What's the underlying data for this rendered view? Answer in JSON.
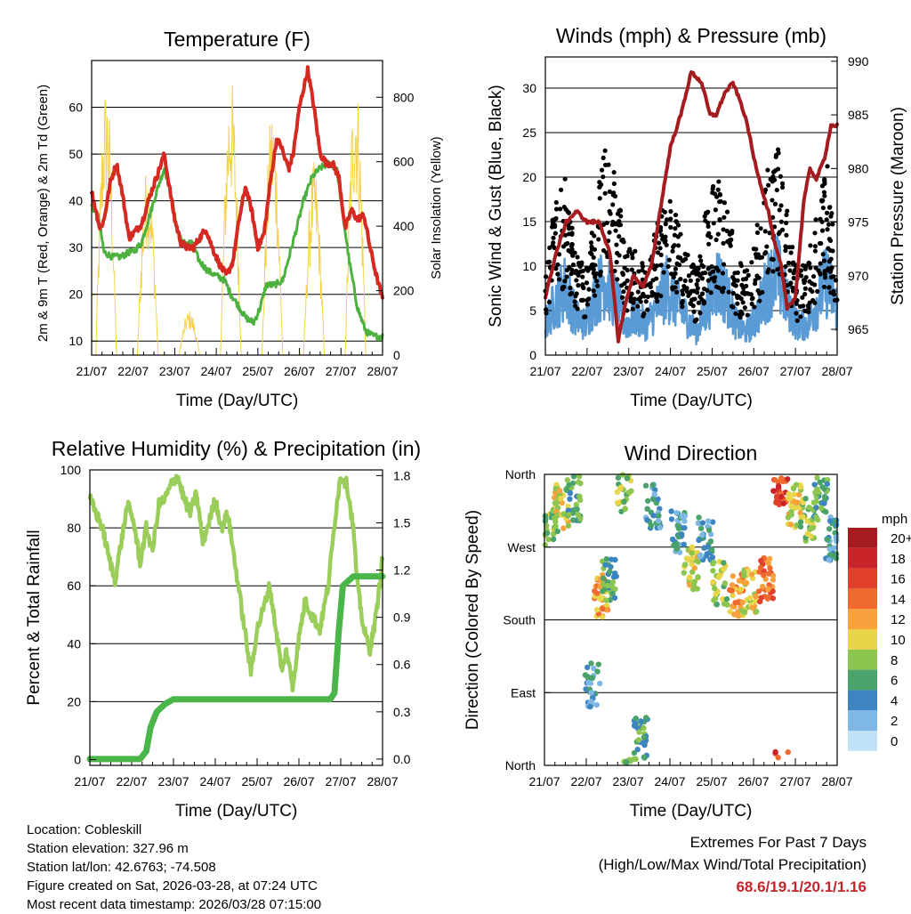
{
  "chart_data": [
    {
      "type": "line",
      "title": "Temperature (F)",
      "xlabel": "Time (Day/UTC)",
      "ylabel": "2m & 9m T (Red, Orange) & 2m Td (Green)",
      "y2label": "Solar Insolation (Yellow)",
      "categories": [
        "21/07",
        "22/07",
        "23/07",
        "24/07",
        "25/07",
        "26/07",
        "27/07",
        "28/07"
      ],
      "ylim": [
        7,
        70
      ],
      "y2lim": [
        0,
        914
      ],
      "yticks": [
        10,
        20,
        30,
        40,
        50,
        60
      ],
      "y2ticks": [
        0,
        200,
        400,
        600,
        800
      ],
      "series": [
        {
          "name": "2m T",
          "color": "#d42a22",
          "x": [
            0,
            0.1,
            0.2,
            0.3,
            0.45,
            0.6,
            0.75,
            0.9,
            1.0,
            1.2,
            1.4,
            1.6,
            1.75,
            1.85,
            2.0,
            2.15,
            2.3,
            2.45,
            2.6,
            2.75,
            2.9,
            3.1,
            3.25,
            3.4,
            3.55,
            3.7,
            3.85,
            4.0,
            4.15,
            4.3,
            4.45,
            4.55,
            4.65,
            4.75,
            4.85,
            5.0,
            5.2,
            5.35,
            5.5,
            5.65,
            5.8,
            5.95,
            6.1,
            6.25,
            6.4,
            6.55,
            6.7,
            6.85,
            7.0
          ],
          "values": [
            42,
            38,
            34,
            36,
            44,
            48,
            41,
            32,
            33,
            35,
            41,
            46,
            50,
            44,
            36,
            31,
            30,
            30,
            32,
            34,
            30,
            26,
            24,
            27,
            36,
            43,
            38,
            30,
            33,
            44,
            53,
            52,
            49,
            47,
            50,
            60,
            68,
            60,
            50,
            48,
            48,
            45,
            34,
            38,
            36,
            37,
            30,
            24,
            19
          ]
        },
        {
          "name": "2m Td",
          "color": "#4db13f",
          "x": [
            0,
            0.15,
            0.3,
            0.5,
            0.7,
            0.9,
            1.0,
            1.2,
            1.4,
            1.6,
            1.75,
            1.9,
            2.05,
            2.2,
            2.4,
            2.6,
            2.8,
            3.0,
            3.2,
            3.35,
            3.5,
            3.7,
            3.9,
            4.05,
            4.2,
            4.4,
            4.6,
            4.75,
            4.9,
            5.1,
            5.3,
            5.5,
            5.7,
            5.9,
            6.0,
            6.2,
            6.4,
            6.6,
            6.8,
            7.0
          ],
          "values": [
            39,
            37,
            29,
            28,
            28,
            29,
            29,
            31,
            37,
            43,
            47,
            42,
            34,
            31,
            31,
            27,
            25,
            24,
            23,
            20,
            18,
            15,
            14,
            17,
            22,
            22,
            23,
            28,
            33,
            40,
            45,
            47,
            48,
            47,
            40,
            27,
            17,
            12,
            11,
            11
          ]
        }
      ],
      "solar": {
        "name": "Solar Insolation",
        "color": "#f3d24a",
        "days": [
          0,
          1,
          2,
          3,
          4,
          5,
          6
        ],
        "peaks": [
          850,
          600,
          140,
          870,
          780,
          600,
          880
        ]
      }
    },
    {
      "type": "scatter",
      "title": "Winds (mph) & Pressure (mb)",
      "xlabel": "Time (Day/UTC)",
      "ylabel": "Sonic Wind & Gust (Blue, Black)",
      "y2label": "Station Pressure (Maroon)",
      "categories": [
        "21/07",
        "22/07",
        "23/07",
        "24/07",
        "25/07",
        "26/07",
        "27/07",
        "28/07"
      ],
      "ylim": [
        0,
        33.5
      ],
      "y2lim": [
        962.6,
        990.4
      ],
      "yticks": [
        0,
        5,
        10,
        15,
        20,
        25,
        30
      ],
      "y2ticks": [
        965,
        970,
        975,
        980,
        985,
        990
      ],
      "wind_level": [
        4,
        7,
        9,
        5,
        4,
        8,
        10,
        7,
        4,
        5,
        4,
        6,
        9,
        7,
        5,
        3,
        6,
        10,
        8,
        4,
        3,
        5,
        9,
        11,
        7,
        4,
        4,
        7,
        10,
        6
      ],
      "gust_level": [
        9,
        15,
        17,
        10,
        8,
        14,
        20,
        17,
        10,
        10,
        9,
        12,
        16,
        13,
        10,
        8,
        14,
        17,
        15,
        9,
        8,
        12,
        17,
        21,
        14,
        8,
        9,
        14,
        18,
        11
      ],
      "pressure": {
        "name": "Station Pressure",
        "color": "#a51c20",
        "x": [
          0,
          0.25,
          0.5,
          0.75,
          1.0,
          1.3,
          1.55,
          1.75,
          1.9,
          2.1,
          2.35,
          2.55,
          2.75,
          3.0,
          3.25,
          3.5,
          3.75,
          3.95,
          4.1,
          4.3,
          4.5,
          4.7,
          4.85,
          5.0,
          5.2,
          5.35,
          5.5,
          5.65,
          5.8,
          6.0,
          6.2,
          6.35,
          6.5,
          6.7,
          6.85,
          7.0
        ],
        "values": [
          968,
          972,
          975,
          976,
          975,
          975,
          972,
          964,
          967,
          970,
          969,
          971,
          976,
          982,
          985,
          989,
          988,
          985,
          985,
          987,
          988,
          986,
          984,
          981,
          978,
          976,
          973,
          971,
          967,
          968,
          977,
          980,
          979,
          981,
          984,
          984
        ]
      }
    },
    {
      "type": "line",
      "title": "Relative Humidity (%) & Precipitation (in)",
      "xlabel": "Time (Day/UTC)",
      "ylabel": "Percent & Total Rainfall",
      "categories": [
        "21/07",
        "22/07",
        "23/07",
        "24/07",
        "25/07",
        "26/07",
        "27/07",
        "28/07"
      ],
      "ylim": [
        -2,
        100
      ],
      "y2lim": [
        -0.04,
        1.836
      ],
      "yticks": [
        0,
        20,
        40,
        60,
        80,
        100
      ],
      "y2ticks": [
        0.0,
        0.3,
        0.6,
        0.9,
        1.2,
        1.5,
        1.8
      ],
      "series": [
        {
          "name": "Relative Humidity",
          "color": "#9acd5a",
          "x": [
            0,
            0.15,
            0.3,
            0.45,
            0.6,
            0.75,
            0.9,
            1.05,
            1.2,
            1.35,
            1.5,
            1.65,
            1.8,
            1.95,
            2.1,
            2.25,
            2.4,
            2.55,
            2.7,
            2.85,
            3.0,
            3.15,
            3.3,
            3.45,
            3.6,
            3.75,
            3.85,
            4.0,
            4.15,
            4.3,
            4.45,
            4.6,
            4.7,
            4.85,
            5.0,
            5.15,
            5.3,
            5.5,
            5.7,
            5.9,
            6.0,
            6.15,
            6.3,
            6.4,
            6.55,
            6.7,
            6.85,
            7.0
          ],
          "values": [
            90,
            85,
            80,
            70,
            62,
            75,
            88,
            82,
            68,
            80,
            72,
            88,
            90,
            95,
            98,
            90,
            85,
            92,
            75,
            82,
            90,
            80,
            85,
            70,
            55,
            40,
            30,
            45,
            52,
            60,
            45,
            30,
            38,
            25,
            42,
            55,
            50,
            45,
            60,
            88,
            98,
            95,
            80,
            60,
            45,
            38,
            50,
            70
          ]
        },
        {
          "name": "Total Precipitation",
          "color": "#4ab64a",
          "x": [
            0,
            1.2,
            1.35,
            1.45,
            1.6,
            1.8,
            2.0,
            2.3,
            3.0,
            4.0,
            5.0,
            5.5,
            5.75,
            5.85,
            5.95,
            6.05,
            6.3,
            6.6,
            7.0
          ],
          "values": [
            0,
            0,
            0.05,
            0.2,
            0.3,
            0.35,
            0.38,
            0.38,
            0.38,
            0.38,
            0.38,
            0.38,
            0.38,
            0.42,
            0.8,
            1.1,
            1.16,
            1.16,
            1.16
          ]
        }
      ]
    },
    {
      "type": "scatter",
      "title": "Wind Direction",
      "xlabel": "Time (Day/UTC)",
      "ylabel": "Direction (Colored By Speed)",
      "categories": [
        "21/07",
        "22/07",
        "23/07",
        "24/07",
        "25/07",
        "26/07",
        "27/07",
        "28/07"
      ],
      "ylim": [
        0,
        360
      ],
      "yticks": [
        "North",
        "East",
        "South",
        "West",
        "North"
      ],
      "clusters": [
        {
          "t": 0.15,
          "dir": 300,
          "spd": 8
        },
        {
          "t": 0.4,
          "dir": 320,
          "spd": 10
        },
        {
          "t": 0.7,
          "dir": 330,
          "spd": 6
        },
        {
          "t": 1.15,
          "dir": 100,
          "spd": 4
        },
        {
          "t": 1.35,
          "dir": 210,
          "spd": 12
        },
        {
          "t": 1.55,
          "dir": 230,
          "spd": 6
        },
        {
          "t": 1.9,
          "dir": 340,
          "spd": 8
        },
        {
          "t": 2.3,
          "dir": 35,
          "spd": 6
        },
        {
          "t": 2.6,
          "dir": 320,
          "spd": 4
        },
        {
          "t": 3.2,
          "dir": 290,
          "spd": 4
        },
        {
          "t": 3.5,
          "dir": 245,
          "spd": 10
        },
        {
          "t": 3.85,
          "dir": 280,
          "spd": 4
        },
        {
          "t": 4.2,
          "dir": 225,
          "spd": 8
        },
        {
          "t": 4.6,
          "dir": 210,
          "spd": 12
        },
        {
          "t": 4.9,
          "dir": 215,
          "spd": 10
        },
        {
          "t": 5.3,
          "dir": 230,
          "spd": 14
        },
        {
          "t": 5.65,
          "dir": 350,
          "spd": 16
        },
        {
          "t": 6.0,
          "dir": 320,
          "spd": 10
        },
        {
          "t": 6.3,
          "dir": 305,
          "spd": 8
        },
        {
          "t": 6.6,
          "dir": 330,
          "spd": 6
        },
        {
          "t": 6.9,
          "dir": 280,
          "spd": 4
        }
      ],
      "colorbar": {
        "unit": "mph",
        "labels": [
          "20+",
          "18",
          "16",
          "14",
          "12",
          "10",
          "8",
          "6",
          "4",
          "2",
          "0"
        ],
        "colors": [
          "#a51c20",
          "#c8242a",
          "#e0402c",
          "#f06a30",
          "#f7a23d",
          "#e9d54a",
          "#8cc54f",
          "#4aa36a",
          "#3c85c1",
          "#7fb8e4",
          "#bfe2f6"
        ]
      }
    }
  ],
  "footer": {
    "location": "Location: Cobleskill",
    "elevation": "Station elevation: 327.96 m",
    "latlon": "Station lat/lon: 42.6763; -74.508",
    "created": "Figure created on Sat, 2026-03-28, at 07:24 UTC",
    "recent": "Most recent data timestamp: 2026/03/28 07:15:00",
    "extremes_title": "Extremes For Past 7 Days",
    "extremes_sub": "(High/Low/Max Wind/Total Precipitation)",
    "extremes_values": "68.6/19.1/20.1/1.16"
  }
}
